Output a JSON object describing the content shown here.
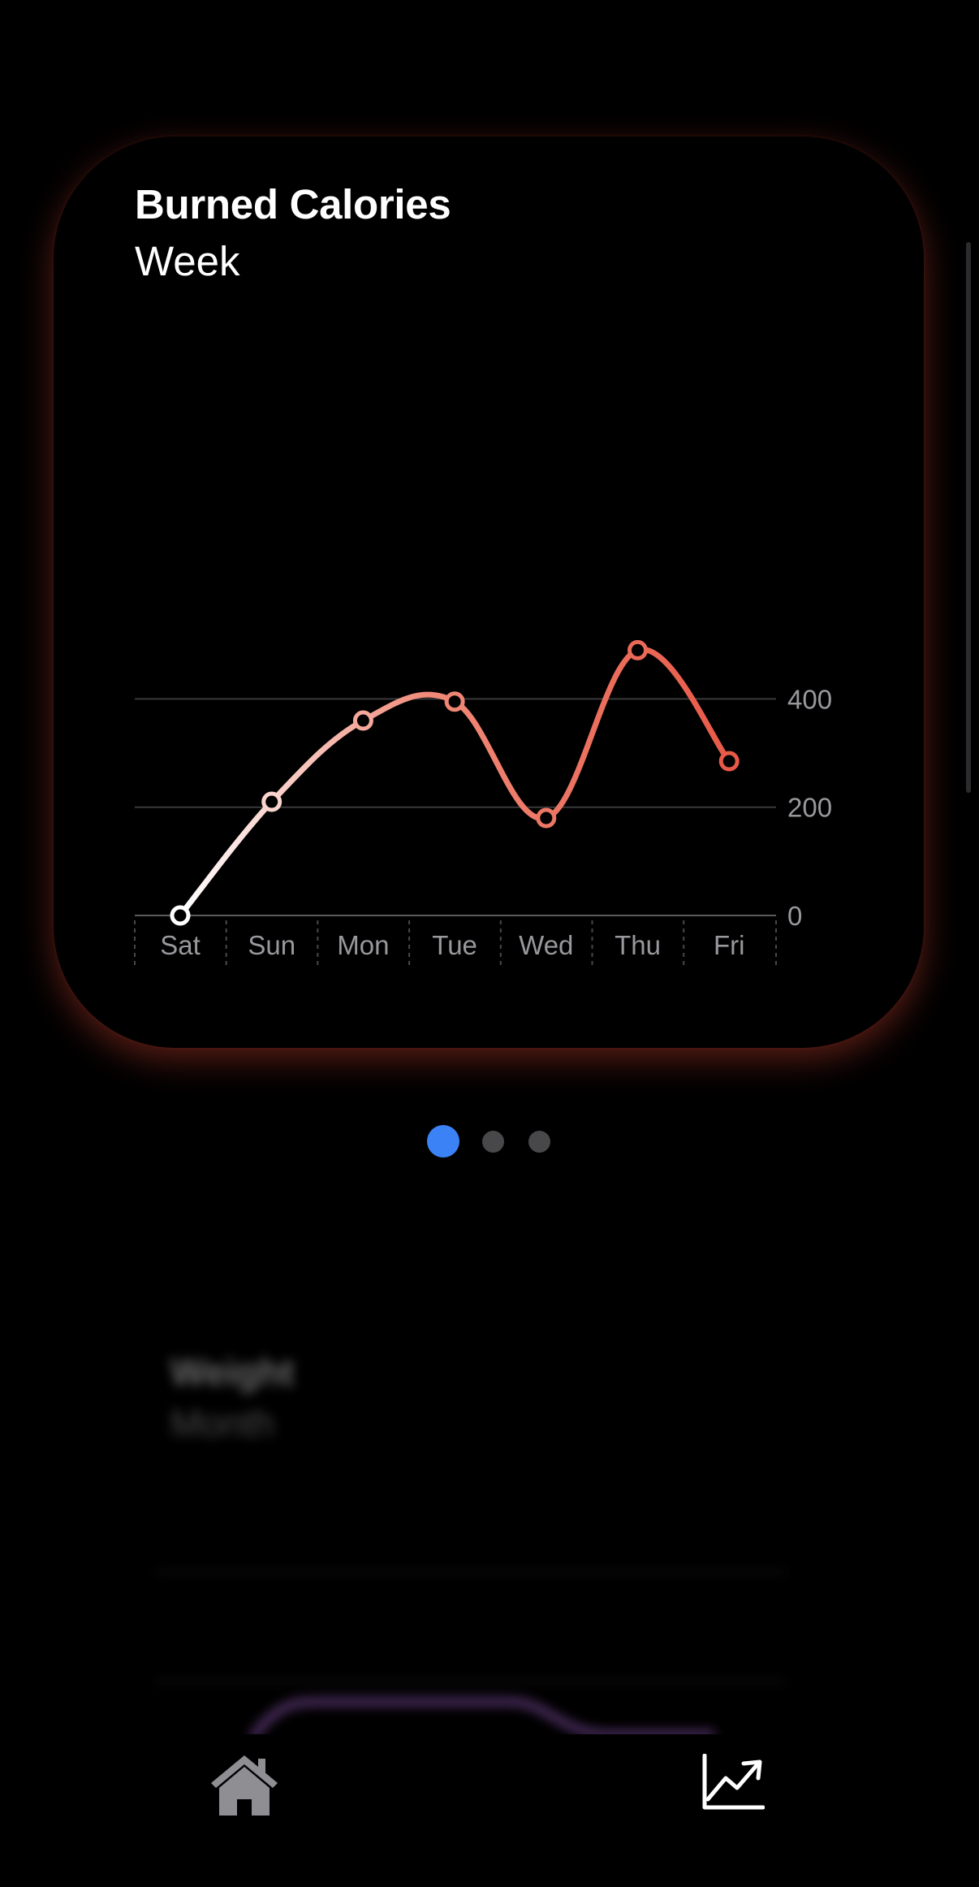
{
  "card": {
    "title": "Burned Calories",
    "subtitle": "Week"
  },
  "chart_data": {
    "type": "line",
    "title": "Burned Calories",
    "subtitle": "Week",
    "categories": [
      "Sat",
      "Sun",
      "Mon",
      "Tue",
      "Wed",
      "Thu",
      "Fri"
    ],
    "values": [
      0,
      210,
      360,
      395,
      180,
      490,
      285
    ],
    "y_ticks": [
      0,
      200,
      400
    ],
    "ylim": [
      0,
      500
    ],
    "grid": "horizontal",
    "y_axis_side": "right",
    "smooth": true,
    "gradient_colors": [
      "#ffffff",
      "#f08a78",
      "#e85a48"
    ]
  },
  "pager": {
    "count": 3,
    "active_index": 0,
    "active_color": "#3b82f6",
    "inactive_color": "#48484a"
  },
  "next_card": {
    "title": "Weight",
    "subtitle": "Month"
  },
  "tabbar": {
    "items": [
      {
        "icon": "house-icon",
        "selected": false
      },
      {
        "icon": "chart-line-uptrend-icon",
        "selected": true
      }
    ]
  }
}
